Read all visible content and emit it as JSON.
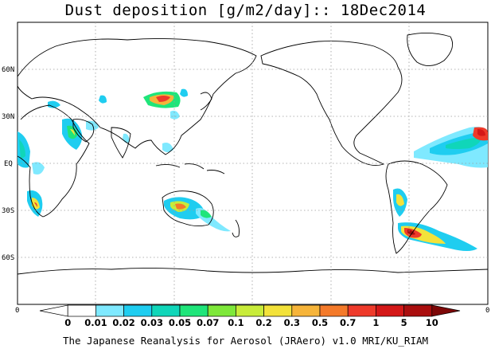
{
  "title": "Dust deposition [g/m2/day]:: 18Dec2014",
  "footer": "The Japanese Reanalysis for Aerosol (JRAero) v1.0 MRI/KU_RIAM",
  "map": {
    "lat_labels": [
      "60N",
      "30N",
      "EQ",
      "30S",
      "60S"
    ],
    "lat_values": [
      60,
      30,
      0,
      -30,
      -60
    ],
    "lon_range": [
      0,
      360
    ],
    "lat_range": [
      -90,
      90
    ],
    "frame_corner_labels": [
      "0",
      "0"
    ],
    "grid": true
  },
  "colorbar": {
    "levels": [
      "0",
      "0.01",
      "0.02",
      "0.03",
      "0.05",
      "0.07",
      "0.1",
      "0.2",
      "0.3",
      "0.5",
      "0.7",
      "1",
      "5",
      "10"
    ],
    "colors": [
      "#ffffff",
      "#ffffff",
      "#7fe9ff",
      "#1fcdf0",
      "#10d6b9",
      "#1fe57a",
      "#7ee83a",
      "#c8ec3a",
      "#f3e23a",
      "#f6b43a",
      "#f47a2a",
      "#ee3a2a",
      "#d41818",
      "#aa0e0e",
      "#7d0707"
    ]
  },
  "colors": {
    "land_outline": "#000000",
    "ocean": "#ffffff",
    "grid": "#9a9a9a"
  }
}
